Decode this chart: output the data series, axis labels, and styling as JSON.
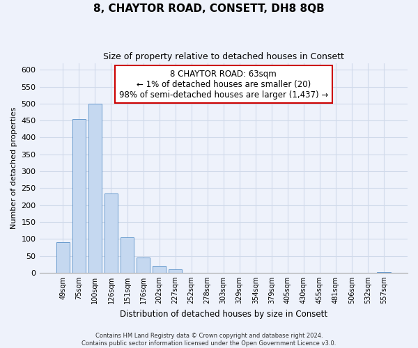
{
  "title": "8, CHAYTOR ROAD, CONSETT, DH8 8QB",
  "subtitle": "Size of property relative to detached houses in Consett",
  "xlabel": "Distribution of detached houses by size in Consett",
  "ylabel": "Number of detached properties",
  "bar_labels": [
    "49sqm",
    "75sqm",
    "100sqm",
    "126sqm",
    "151sqm",
    "176sqm",
    "202sqm",
    "227sqm",
    "252sqm",
    "278sqm",
    "303sqm",
    "329sqm",
    "354sqm",
    "379sqm",
    "405sqm",
    "430sqm",
    "455sqm",
    "481sqm",
    "506sqm",
    "532sqm",
    "557sqm"
  ],
  "bar_values": [
    90,
    455,
    500,
    235,
    105,
    45,
    20,
    10,
    0,
    0,
    0,
    0,
    0,
    0,
    0,
    0,
    0,
    0,
    0,
    0,
    2
  ],
  "bar_color": "#c5d8f0",
  "bar_edge_color": "#6699cc",
  "ylim": [
    0,
    620
  ],
  "yticks": [
    0,
    50,
    100,
    150,
    200,
    250,
    300,
    350,
    400,
    450,
    500,
    550,
    600
  ],
  "annotation_line1": "8 CHAYTOR ROAD: 63sqm",
  "annotation_line2": "← 1% of detached houses are smaller (20)",
  "annotation_line3": "98% of semi-detached houses are larger (1,437) →",
  "annotation_box_color": "#ffffff",
  "annotation_box_edge_color": "#cc0000",
  "footer_line1": "Contains HM Land Registry data © Crown copyright and database right 2024.",
  "footer_line2": "Contains public sector information licensed under the Open Government Licence v3.0.",
  "bg_color": "#eef2fb",
  "grid_color": "#d0daea"
}
